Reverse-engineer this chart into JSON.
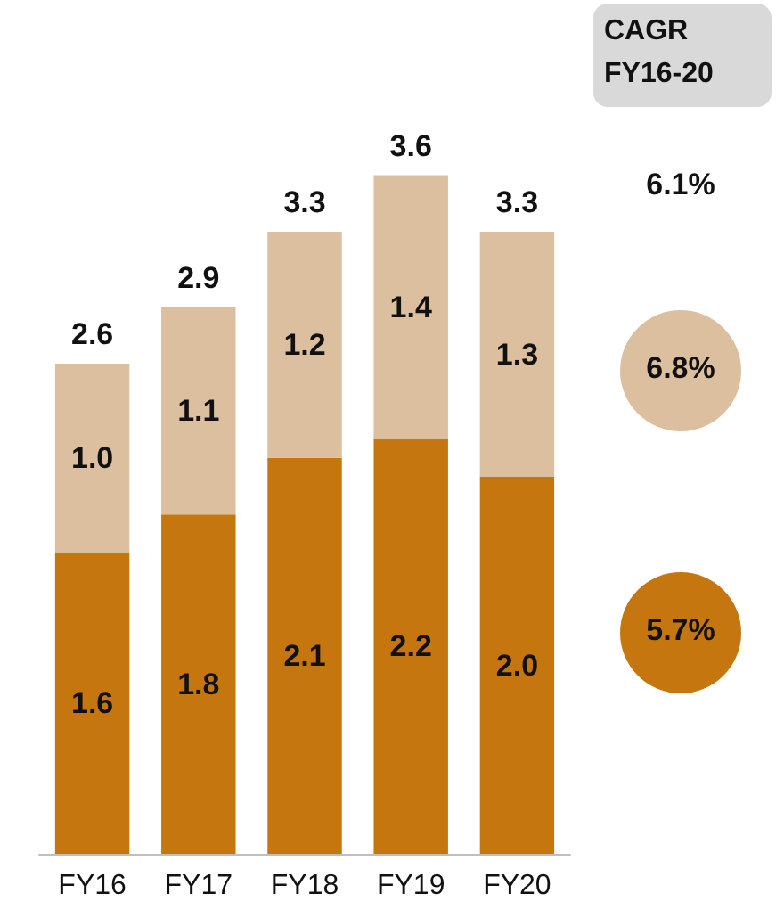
{
  "chart_data": {
    "type": "bar",
    "stacked": true,
    "categories": [
      "FY16",
      "FY17",
      "FY18",
      "FY19",
      "FY20"
    ],
    "series": [
      {
        "color": "#c5760e",
        "values": [
          1.6,
          1.8,
          2.1,
          2.2,
          2.0
        ],
        "value_labels": [
          "1.6",
          "1.8",
          "2.1",
          "2.2",
          "2.0"
        ]
      },
      {
        "color": "#dcbf9f",
        "values": [
          1.0,
          1.1,
          1.2,
          1.4,
          1.3
        ],
        "value_labels": [
          "1.0",
          "1.1",
          "1.2",
          "1.4",
          "1.3"
        ]
      }
    ],
    "totals": [
      "2.6",
      "2.9",
      "3.3",
      "3.6",
      "3.3"
    ],
    "annotations": [
      "CAGR FY16-20",
      "6.1%",
      "6.8%",
      "5.7%"
    ]
  }
}
